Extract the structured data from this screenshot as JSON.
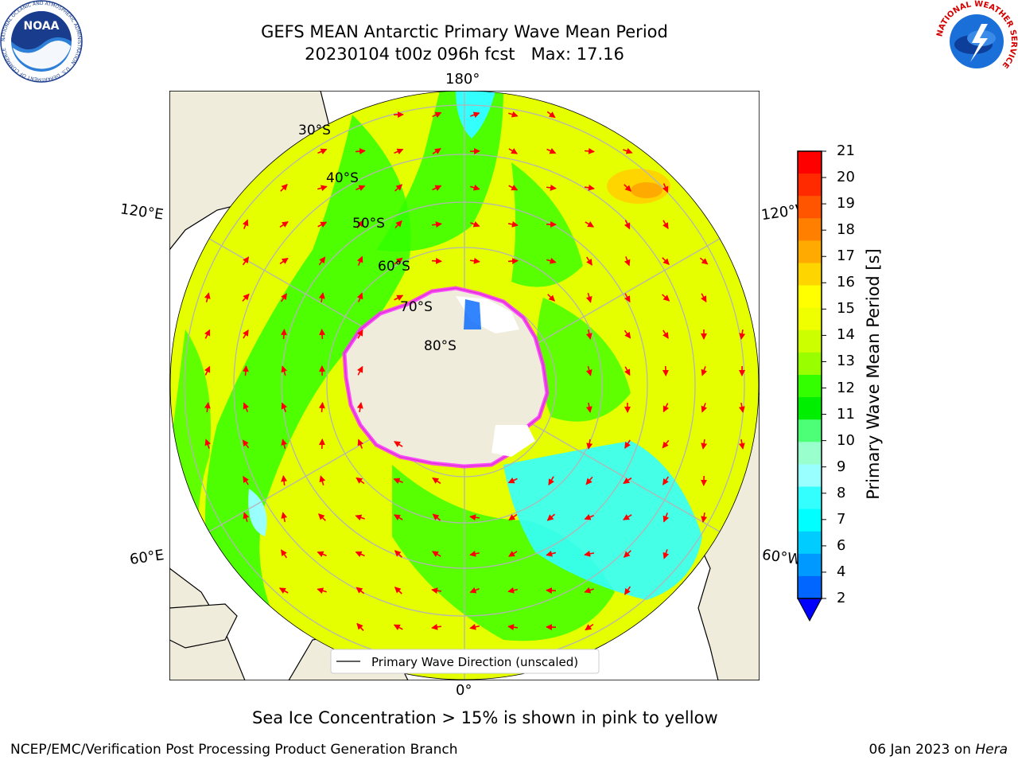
{
  "header": {
    "title_line1": "GEFS MEAN Antarctic Primary Wave Mean Period",
    "title_line2": "20230104 t00z 096h fcst   Max: 17.16"
  },
  "logos": {
    "left": {
      "name": "NOAA",
      "ring_text": "NATIONAL OCEANIC AND ATMOSPHERIC ADMINISTRATION · U.S. DEPARTMENT OF COMMERCE"
    },
    "right": {
      "ring_text": "NATIONAL WEATHER SERVICE"
    }
  },
  "map": {
    "lon_labels": {
      "top": "180°",
      "bottom": "0°",
      "left_upper": "120°E",
      "left_lower": "60°E",
      "right_upper": "120°W",
      "right_lower": "60°W"
    },
    "lat_labels": [
      "30°S",
      "40°S",
      "50°S",
      "60°S",
      "70°S",
      "80°S"
    ],
    "legend_label": "Primary Wave Direction (unscaled)",
    "colors": {
      "land": "#efecdc",
      "ocean_green": "#33ff00",
      "ocean_yellow": "#e5ff00",
      "ocean_cyan": "#33ffff",
      "arrow": "#ff0000",
      "ice_pink": "#ff33ff",
      "grid": "#b4b4b4"
    }
  },
  "colorbar": {
    "label": "Primary Wave Mean Period [s]",
    "ticks": [
      "21",
      "20",
      "19",
      "18",
      "17",
      "16",
      "15",
      "14",
      "13",
      "12",
      "11",
      "10",
      "9",
      "8",
      "7",
      "6",
      "4",
      "2"
    ],
    "bands_top_to_bottom": [
      "#ff0000",
      "#ff2a00",
      "#ff5500",
      "#ff8000",
      "#ffaa00",
      "#ffd500",
      "#ffff00",
      "#f0ff00",
      "#ccff00",
      "#99ff00",
      "#33ff00",
      "#00ee00",
      "#4dff77",
      "#99ffcc",
      "#99ffff",
      "#33ffff",
      "#00ffff",
      "#00ccff",
      "#0099ff",
      "#0066ff"
    ],
    "extend_color": "#0000ff"
  },
  "notes": {
    "sea_ice": "Sea Ice Concentration > 15% is shown in pink to yellow"
  },
  "footer": {
    "left": "NCEP/EMC/Verification Post Processing Product Generation Branch",
    "right_date": "06 Jan 2023 on",
    "right_host": "Hera"
  }
}
